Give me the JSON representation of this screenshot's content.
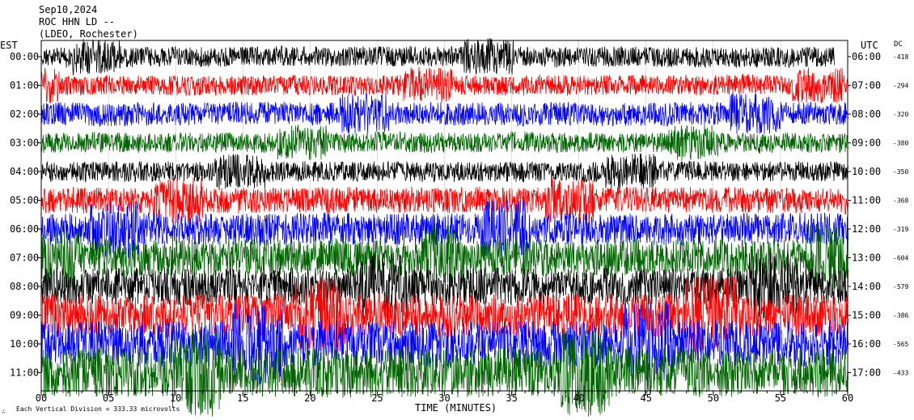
{
  "header": {
    "date": "Sep10,2024",
    "station": "ROC HHN LD --",
    "network": "(LDEO, Rochester)"
  },
  "labels": {
    "left_tz": "EST",
    "right_tz": "UTC",
    "dc_header": "DC",
    "xlabel": "TIME (MINUTES)",
    "footnote_mark": "∴",
    "footnote": "Each Vertical Division = 333.33 microvolts"
  },
  "colors": {
    "trace_cycle": [
      "#000000",
      "#ff0000",
      "#0000ff",
      "#006400"
    ],
    "axis": "#000000",
    "background": "#ffffff"
  },
  "chart_data": {
    "type": "line",
    "title": "",
    "xlabel": "TIME (MINUTES)",
    "xlim": [
      0,
      60
    ],
    "xticks": [
      "00",
      "05",
      "10",
      "15",
      "20",
      "25",
      "30",
      "35",
      "40",
      "45",
      "50",
      "55",
      "60"
    ],
    "grid": true,
    "series": [
      {
        "est": "00:00",
        "utc": "06:00",
        "dc": "-418",
        "end_minute": 59,
        "amplitude": 0.35,
        "color": "#000000"
      },
      {
        "est": "01:00",
        "utc": "07:00",
        "dc": "-294",
        "end_minute": 60,
        "amplitude": 0.35,
        "color": "#ff0000"
      },
      {
        "est": "02:00",
        "utc": "08:00",
        "dc": "-320",
        "end_minute": 60,
        "amplitude": 0.4,
        "color": "#0000ff"
      },
      {
        "est": "03:00",
        "utc": "09:00",
        "dc": "-380",
        "end_minute": 60,
        "amplitude": 0.35,
        "color": "#006400"
      },
      {
        "est": "04:00",
        "utc": "10:00",
        "dc": "-350",
        "end_minute": 60,
        "amplitude": 0.35,
        "color": "#000000"
      },
      {
        "est": "05:00",
        "utc": "11:00",
        "dc": "-368",
        "end_minute": 60,
        "amplitude": 0.45,
        "color": "#ff0000"
      },
      {
        "est": "06:00",
        "utc": "12:00",
        "dc": "-319",
        "end_minute": 60,
        "amplitude": 0.55,
        "color": "#0000ff"
      },
      {
        "est": "07:00",
        "utc": "13:00",
        "dc": "-604",
        "end_minute": 60,
        "amplitude": 0.65,
        "color": "#006400"
      },
      {
        "est": "08:00",
        "utc": "14:00",
        "dc": "-579",
        "end_minute": 60,
        "amplitude": 0.65,
        "color": "#000000"
      },
      {
        "est": "09:00",
        "utc": "15:00",
        "dc": "-386",
        "end_minute": 60,
        "amplitude": 0.75,
        "color": "#ff0000"
      },
      {
        "est": "10:00",
        "utc": "16:00",
        "dc": "-565",
        "end_minute": 60,
        "amplitude": 0.8,
        "color": "#0000ff"
      },
      {
        "est": "11:00",
        "utc": "17:00",
        "dc": "-433",
        "end_minute": 60,
        "amplitude": 0.85,
        "color": "#006400"
      }
    ]
  }
}
